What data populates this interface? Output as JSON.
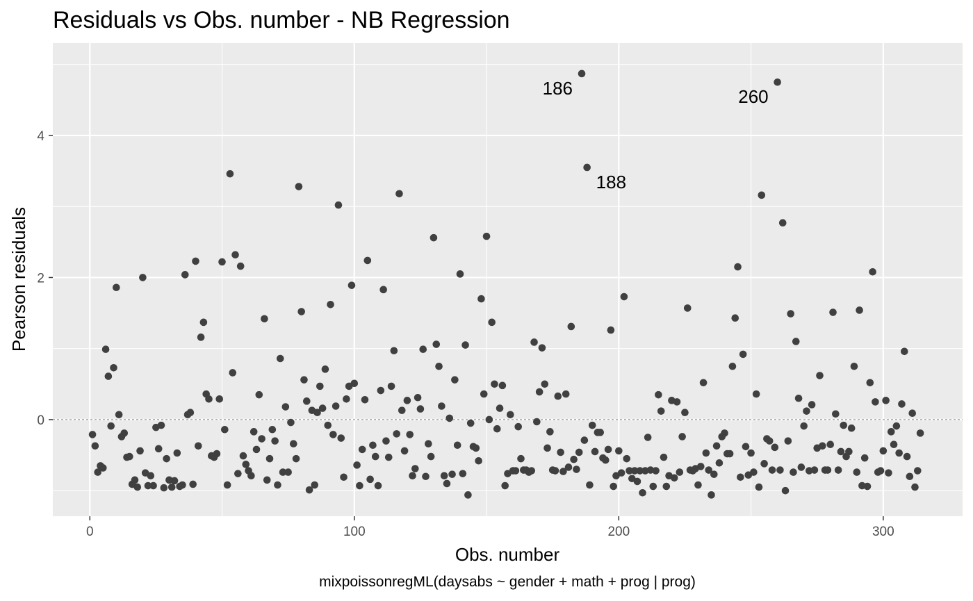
{
  "chart_data": {
    "type": "scatter",
    "title": "Residuals vs Obs. number - NB Regression",
    "xlabel": "Obs. number",
    "ylabel": "Pearson residuals",
    "caption": "mixpoissonregML(daysabs ~ gender + math + prog | prog)",
    "xlim": [
      -14,
      330
    ],
    "ylim": [
      -1.36,
      5.3
    ],
    "x_ticks": [
      0,
      100,
      200,
      300
    ],
    "y_ticks": [
      0,
      2,
      4
    ],
    "x_tick_labels": [
      "0",
      "100",
      "200",
      "300"
    ],
    "y_tick_labels": [
      "0",
      "2",
      "4"
    ],
    "reference_line_y": 0,
    "grid": true,
    "colors": {
      "panel_background": "#ebebeb",
      "grid_major": "#ffffff",
      "points": "#404040",
      "reference_line": "#7f7f7f"
    },
    "labeled_points": [
      {
        "label": "186",
        "x": 186,
        "y": 4.87,
        "side": "left"
      },
      {
        "label": "188",
        "x": 188,
        "y": 3.55,
        "side": "right"
      },
      {
        "label": "260",
        "x": 260,
        "y": 4.75,
        "side": "left"
      }
    ],
    "points": [
      [
        1,
        -0.21
      ],
      [
        2,
        -0.37
      ],
      [
        3,
        -0.74
      ],
      [
        4,
        -0.65
      ],
      [
        5,
        -0.68
      ],
      [
        6,
        0.99
      ],
      [
        7,
        0.61
      ],
      [
        8,
        -0.09
      ],
      [
        9,
        0.73
      ],
      [
        10,
        1.86
      ],
      [
        11,
        0.07
      ],
      [
        12,
        -0.24
      ],
      [
        13,
        -0.19
      ],
      [
        14,
        -0.53
      ],
      [
        15,
        -0.52
      ],
      [
        16,
        -0.91
      ],
      [
        17,
        -0.85
      ],
      [
        18,
        -0.95
      ],
      [
        19,
        -0.44
      ],
      [
        20,
        2.0
      ],
      [
        21,
        -0.75
      ],
      [
        22,
        -0.93
      ],
      [
        23,
        -0.79
      ],
      [
        24,
        -0.93
      ],
      [
        25,
        -0.11
      ],
      [
        26,
        -0.41
      ],
      [
        27,
        -0.08
      ],
      [
        28,
        -0.96
      ],
      [
        29,
        -0.55
      ],
      [
        30,
        -0.85
      ],
      [
        31,
        -0.95
      ],
      [
        32,
        -0.86
      ],
      [
        33,
        -0.47
      ],
      [
        34,
        -0.94
      ],
      [
        35,
        -0.92
      ],
      [
        36,
        2.04
      ],
      [
        37,
        0.07
      ],
      [
        38,
        0.1
      ],
      [
        39,
        -0.91
      ],
      [
        40,
        2.23
      ],
      [
        41,
        -0.37
      ],
      [
        42,
        1.16
      ],
      [
        43,
        1.37
      ],
      [
        44,
        0.36
      ],
      [
        45,
        0.29
      ],
      [
        46,
        -0.51
      ],
      [
        47,
        -0.53
      ],
      [
        48,
        -0.48
      ],
      [
        49,
        0.29
      ],
      [
        50,
        2.22
      ],
      [
        51,
        -0.14
      ],
      [
        52,
        -0.92
      ],
      [
        53,
        3.46
      ],
      [
        54,
        0.66
      ],
      [
        55,
        2.32
      ],
      [
        56,
        -0.76
      ],
      [
        57,
        2.16
      ],
      [
        58,
        -0.51
      ],
      [
        59,
        -0.63
      ],
      [
        60,
        -0.72
      ],
      [
        61,
        -0.79
      ],
      [
        62,
        -0.17
      ],
      [
        63,
        -0.42
      ],
      [
        64,
        0.35
      ],
      [
        65,
        -0.27
      ],
      [
        66,
        1.42
      ],
      [
        67,
        -0.85
      ],
      [
        68,
        -0.55
      ],
      [
        69,
        -0.14
      ],
      [
        70,
        -0.3
      ],
      [
        71,
        -0.92
      ],
      [
        72,
        0.86
      ],
      [
        73,
        -0.74
      ],
      [
        74,
        0.18
      ],
      [
        75,
        -0.74
      ],
      [
        76,
        -0.04
      ],
      [
        77,
        -0.34
      ],
      [
        78,
        -0.55
      ],
      [
        79,
        3.28
      ],
      [
        80,
        1.52
      ],
      [
        81,
        0.56
      ],
      [
        82,
        0.26
      ],
      [
        83,
        -0.99
      ],
      [
        84,
        0.13
      ],
      [
        85,
        -0.92
      ],
      [
        86,
        0.1
      ],
      [
        87,
        0.47
      ],
      [
        88,
        0.16
      ],
      [
        89,
        0.71
      ],
      [
        90,
        -0.08
      ],
      [
        91,
        1.62
      ],
      [
        92,
        -0.21
      ],
      [
        93,
        0.19
      ],
      [
        94,
        3.02
      ],
      [
        95,
        -0.26
      ],
      [
        96,
        -0.81
      ],
      [
        97,
        0.29
      ],
      [
        98,
        0.47
      ],
      [
        99,
        1.89
      ],
      [
        100,
        0.51
      ],
      [
        101,
        -0.64
      ],
      [
        102,
        -0.93
      ],
      [
        103,
        -0.42
      ],
      [
        104,
        0.28
      ],
      [
        105,
        2.24
      ],
      [
        106,
        -0.84
      ],
      [
        107,
        -0.36
      ],
      [
        108,
        -0.52
      ],
      [
        109,
        -0.93
      ],
      [
        110,
        0.41
      ],
      [
        111,
        1.83
      ],
      [
        112,
        -0.3
      ],
      [
        113,
        -0.53
      ],
      [
        114,
        0.47
      ],
      [
        115,
        0.97
      ],
      [
        116,
        -0.2
      ],
      [
        117,
        3.18
      ],
      [
        118,
        0.13
      ],
      [
        119,
        -0.44
      ],
      [
        120,
        0.27
      ],
      [
        121,
        -0.21
      ],
      [
        122,
        -0.79
      ],
      [
        123,
        -0.69
      ],
      [
        124,
        0.31
      ],
      [
        125,
        0.15
      ],
      [
        126,
        0.99
      ],
      [
        127,
        -0.8
      ],
      [
        128,
        -0.34
      ],
      [
        129,
        -0.52
      ],
      [
        130,
        2.56
      ],
      [
        131,
        1.06
      ],
      [
        132,
        0.75
      ],
      [
        133,
        0.19
      ],
      [
        134,
        -0.79
      ],
      [
        135,
        -0.9
      ],
      [
        136,
        0.02
      ],
      [
        137,
        -0.77
      ],
      [
        138,
        0.56
      ],
      [
        139,
        -0.36
      ],
      [
        140,
        2.05
      ],
      [
        141,
        -0.76
      ],
      [
        142,
        1.05
      ],
      [
        143,
        -1.06
      ],
      [
        144,
        -0.05
      ],
      [
        145,
        -0.38
      ],
      [
        146,
        -0.4
      ],
      [
        147,
        -0.58
      ],
      [
        148,
        1.7
      ],
      [
        149,
        0.36
      ],
      [
        150,
        2.58
      ],
      [
        151,
        0.0
      ],
      [
        152,
        1.37
      ],
      [
        153,
        0.5
      ],
      [
        154,
        -0.13
      ],
      [
        155,
        0.16
      ],
      [
        156,
        0.48
      ],
      [
        157,
        -0.93
      ],
      [
        158,
        -0.76
      ],
      [
        159,
        0.07
      ],
      [
        160,
        -0.72
      ],
      [
        161,
        -0.72
      ],
      [
        162,
        -0.1
      ],
      [
        163,
        -0.55
      ],
      [
        164,
        -0.71
      ],
      [
        165,
        -0.71
      ],
      [
        166,
        -0.74
      ],
      [
        167,
        -0.72
      ],
      [
        168,
        1.09
      ],
      [
        169,
        -0.03
      ],
      [
        170,
        0.39
      ],
      [
        171,
        1.01
      ],
      [
        172,
        0.5
      ],
      [
        173,
        -0.4
      ],
      [
        174,
        -0.17
      ],
      [
        175,
        -0.71
      ],
      [
        176,
        -0.72
      ],
      [
        177,
        0.33
      ],
      [
        178,
        -0.46
      ],
      [
        179,
        -0.73
      ],
      [
        180,
        0.36
      ],
      [
        181,
        -0.67
      ],
      [
        182,
        1.31
      ],
      [
        183,
        -0.56
      ],
      [
        184,
        -0.7
      ],
      [
        185,
        -0.46
      ],
      [
        186,
        4.87
      ],
      [
        187,
        -0.29
      ],
      [
        188,
        3.55
      ],
      [
        189,
        -0.92
      ],
      [
        190,
        -0.08
      ],
      [
        191,
        -0.45
      ],
      [
        192,
        -0.18
      ],
      [
        193,
        -0.18
      ],
      [
        194,
        -0.54
      ],
      [
        195,
        -0.57
      ],
      [
        196,
        -0.42
      ],
      [
        197,
        1.26
      ],
      [
        198,
        -0.94
      ],
      [
        199,
        -0.79
      ],
      [
        200,
        -0.44
      ],
      [
        201,
        -0.75
      ],
      [
        202,
        1.73
      ],
      [
        203,
        -0.55
      ],
      [
        204,
        -0.72
      ],
      [
        205,
        -0.83
      ],
      [
        206,
        -0.72
      ],
      [
        207,
        -0.87
      ],
      [
        208,
        -0.72
      ],
      [
        209,
        -1.03
      ],
      [
        210,
        -0.72
      ],
      [
        211,
        -0.25
      ],
      [
        212,
        -0.71
      ],
      [
        213,
        -0.94
      ],
      [
        214,
        -0.72
      ],
      [
        215,
        0.35
      ],
      [
        216,
        0.12
      ],
      [
        217,
        -0.53
      ],
      [
        218,
        -0.94
      ],
      [
        219,
        -0.79
      ],
      [
        220,
        0.27
      ],
      [
        221,
        -0.82
      ],
      [
        222,
        0.25
      ],
      [
        223,
        -0.74
      ],
      [
        224,
        -0.24
      ],
      [
        225,
        0.1
      ],
      [
        226,
        1.57
      ],
      [
        227,
        -0.71
      ],
      [
        228,
        -0.72
      ],
      [
        229,
        -0.69
      ],
      [
        230,
        -0.92
      ],
      [
        231,
        -0.66
      ],
      [
        232,
        0.52
      ],
      [
        233,
        -0.47
      ],
      [
        234,
        -0.71
      ],
      [
        235,
        -1.06
      ],
      [
        236,
        -0.77
      ],
      [
        237,
        -0.37
      ],
      [
        238,
        -0.61
      ],
      [
        239,
        -0.24
      ],
      [
        240,
        -0.19
      ],
      [
        241,
        -0.48
      ],
      [
        242,
        -0.48
      ],
      [
        243,
        0.75
      ],
      [
        244,
        1.43
      ],
      [
        245,
        2.15
      ],
      [
        246,
        -0.81
      ],
      [
        247,
        0.92
      ],
      [
        248,
        -0.38
      ],
      [
        249,
        -0.78
      ],
      [
        250,
        -0.47
      ],
      [
        251,
        -0.74
      ],
      [
        252,
        0.36
      ],
      [
        253,
        -0.95
      ],
      [
        254,
        3.16
      ],
      [
        255,
        -0.62
      ],
      [
        256,
        -0.27
      ],
      [
        257,
        -0.3
      ],
      [
        258,
        -0.71
      ],
      [
        259,
        -0.39
      ],
      [
        260,
        4.75
      ],
      [
        261,
        -0.71
      ],
      [
        262,
        2.77
      ],
      [
        263,
        -1.0
      ],
      [
        264,
        -0.3
      ],
      [
        265,
        1.49
      ],
      [
        266,
        -0.74
      ],
      [
        267,
        1.1
      ],
      [
        268,
        0.3
      ],
      [
        269,
        -0.67
      ],
      [
        270,
        -0.09
      ],
      [
        271,
        0.12
      ],
      [
        272,
        -0.72
      ],
      [
        273,
        0.21
      ],
      [
        274,
        -0.71
      ],
      [
        275,
        -0.4
      ],
      [
        276,
        0.62
      ],
      [
        277,
        -0.37
      ],
      [
        278,
        -0.71
      ],
      [
        279,
        -0.71
      ],
      [
        280,
        -0.35
      ],
      [
        281,
        1.51
      ],
      [
        282,
        0.08
      ],
      [
        283,
        -0.71
      ],
      [
        284,
        -0.45
      ],
      [
        285,
        -0.08
      ],
      [
        286,
        -0.52
      ],
      [
        287,
        -0.45
      ],
      [
        288,
        -0.12
      ],
      [
        289,
        0.75
      ],
      [
        290,
        -0.74
      ],
      [
        291,
        1.54
      ],
      [
        292,
        -0.93
      ],
      [
        293,
        -0.54
      ],
      [
        294,
        -0.94
      ],
      [
        295,
        0.52
      ],
      [
        296,
        2.08
      ],
      [
        297,
        0.25
      ],
      [
        298,
        -0.74
      ],
      [
        299,
        -0.72
      ],
      [
        300,
        -0.44
      ],
      [
        301,
        0.27
      ],
      [
        302,
        -0.75
      ],
      [
        303,
        -0.17
      ],
      [
        304,
        -0.35
      ],
      [
        305,
        -0.09
      ],
      [
        306,
        -0.47
      ],
      [
        307,
        0.22
      ],
      [
        308,
        0.96
      ],
      [
        309,
        -0.52
      ],
      [
        310,
        -0.8
      ],
      [
        311,
        0.09
      ],
      [
        312,
        -0.95
      ],
      [
        313,
        -0.72
      ],
      [
        314,
        -0.19
      ]
    ]
  }
}
